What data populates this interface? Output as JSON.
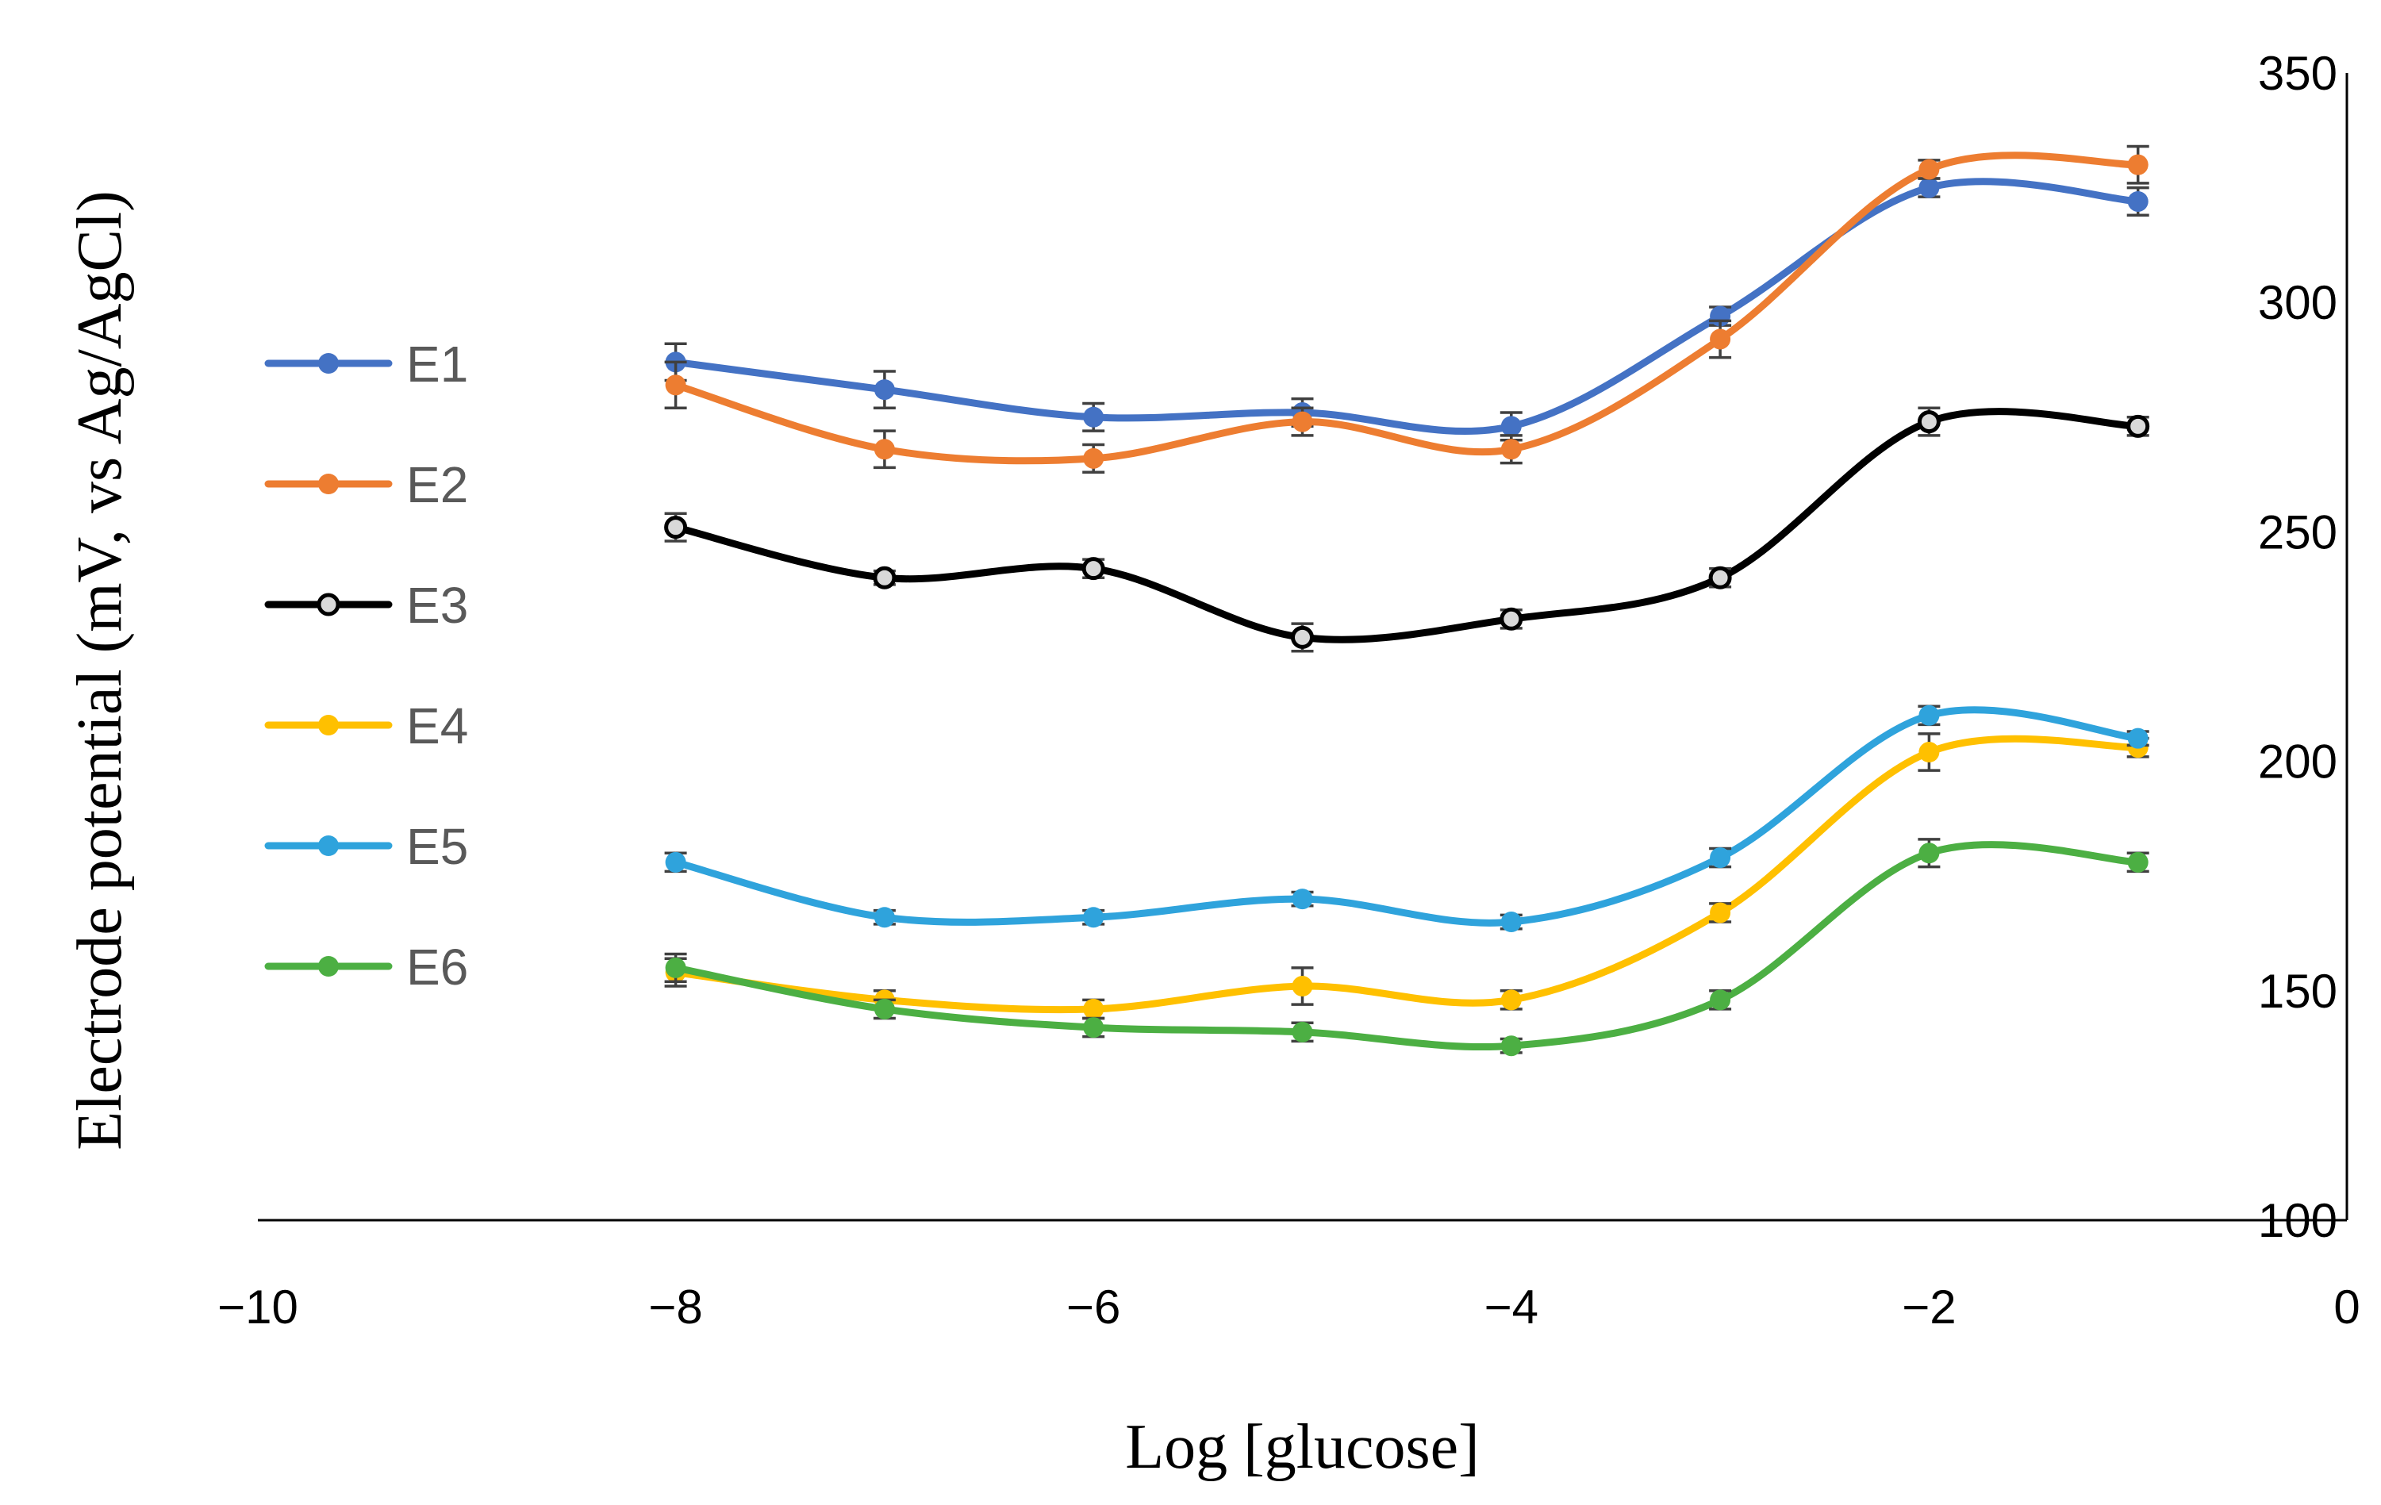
{
  "chart_data": {
    "type": "line",
    "title": "",
    "xlabel": "Log [glucose]",
    "ylabel": "Electrode potential (mV, vs Ag/AgCl)",
    "xlim": [
      -10,
      0
    ],
    "ylim": [
      100,
      350
    ],
    "x_ticks": [
      -10,
      -8,
      -6,
      -4,
      -2,
      0
    ],
    "x_tick_labels": [
      "−10",
      "−8",
      "−6",
      "−4",
      "−2",
      "0"
    ],
    "y_ticks": [
      100,
      150,
      200,
      250,
      300,
      350
    ],
    "y_tick_labels": [
      "100",
      "150",
      "200",
      "250",
      "300",
      "350"
    ],
    "y_axis_side": "right",
    "grid": false,
    "legend_position": "left",
    "smooth": true,
    "x": [
      -8,
      -7,
      -6,
      -5,
      -4,
      -3,
      -2,
      -1
    ],
    "series": [
      {
        "name": "E1",
        "color": "#4472C4",
        "values": [
          287,
          281,
          275,
          276,
          273,
          297,
          325,
          322
        ],
        "errors": [
          4,
          4,
          3,
          3,
          3,
          2,
          2,
          3
        ],
        "marker": "dot"
      },
      {
        "name": "E2",
        "color": "#ED7D31",
        "values": [
          282,
          268,
          266,
          274,
          268,
          292,
          329,
          330
        ],
        "errors": [
          5,
          4,
          3,
          3,
          3,
          4,
          2,
          4
        ],
        "marker": "dot"
      },
      {
        "name": "E3",
        "color": "#000000",
        "values": [
          251,
          240,
          242,
          227,
          231,
          240,
          274,
          273
        ],
        "errors": [
          3,
          1.5,
          2,
          3,
          2,
          2,
          3,
          2
        ],
        "marker": "hollow"
      },
      {
        "name": "E4",
        "color": "#FFC000",
        "values": [
          154,
          148,
          146,
          151,
          148,
          167,
          202,
          203
        ],
        "errors": [
          3,
          2,
          2,
          4,
          2,
          2,
          4,
          2
        ],
        "marker": "dot"
      },
      {
        "name": "E5",
        "color": "#2FA3DC",
        "values": [
          178,
          166,
          166,
          170,
          165,
          179,
          210,
          205
        ],
        "errors": [
          2,
          1.5,
          1.5,
          1.5,
          1.5,
          2,
          2,
          1.5
        ],
        "marker": "dot"
      },
      {
        "name": "E6",
        "color": "#4CAF43",
        "values": [
          155,
          146,
          142,
          141,
          138,
          148,
          180,
          178
        ],
        "errors": [
          3,
          2,
          2,
          2,
          1.5,
          2,
          3,
          2
        ],
        "marker": "dot"
      }
    ]
  }
}
